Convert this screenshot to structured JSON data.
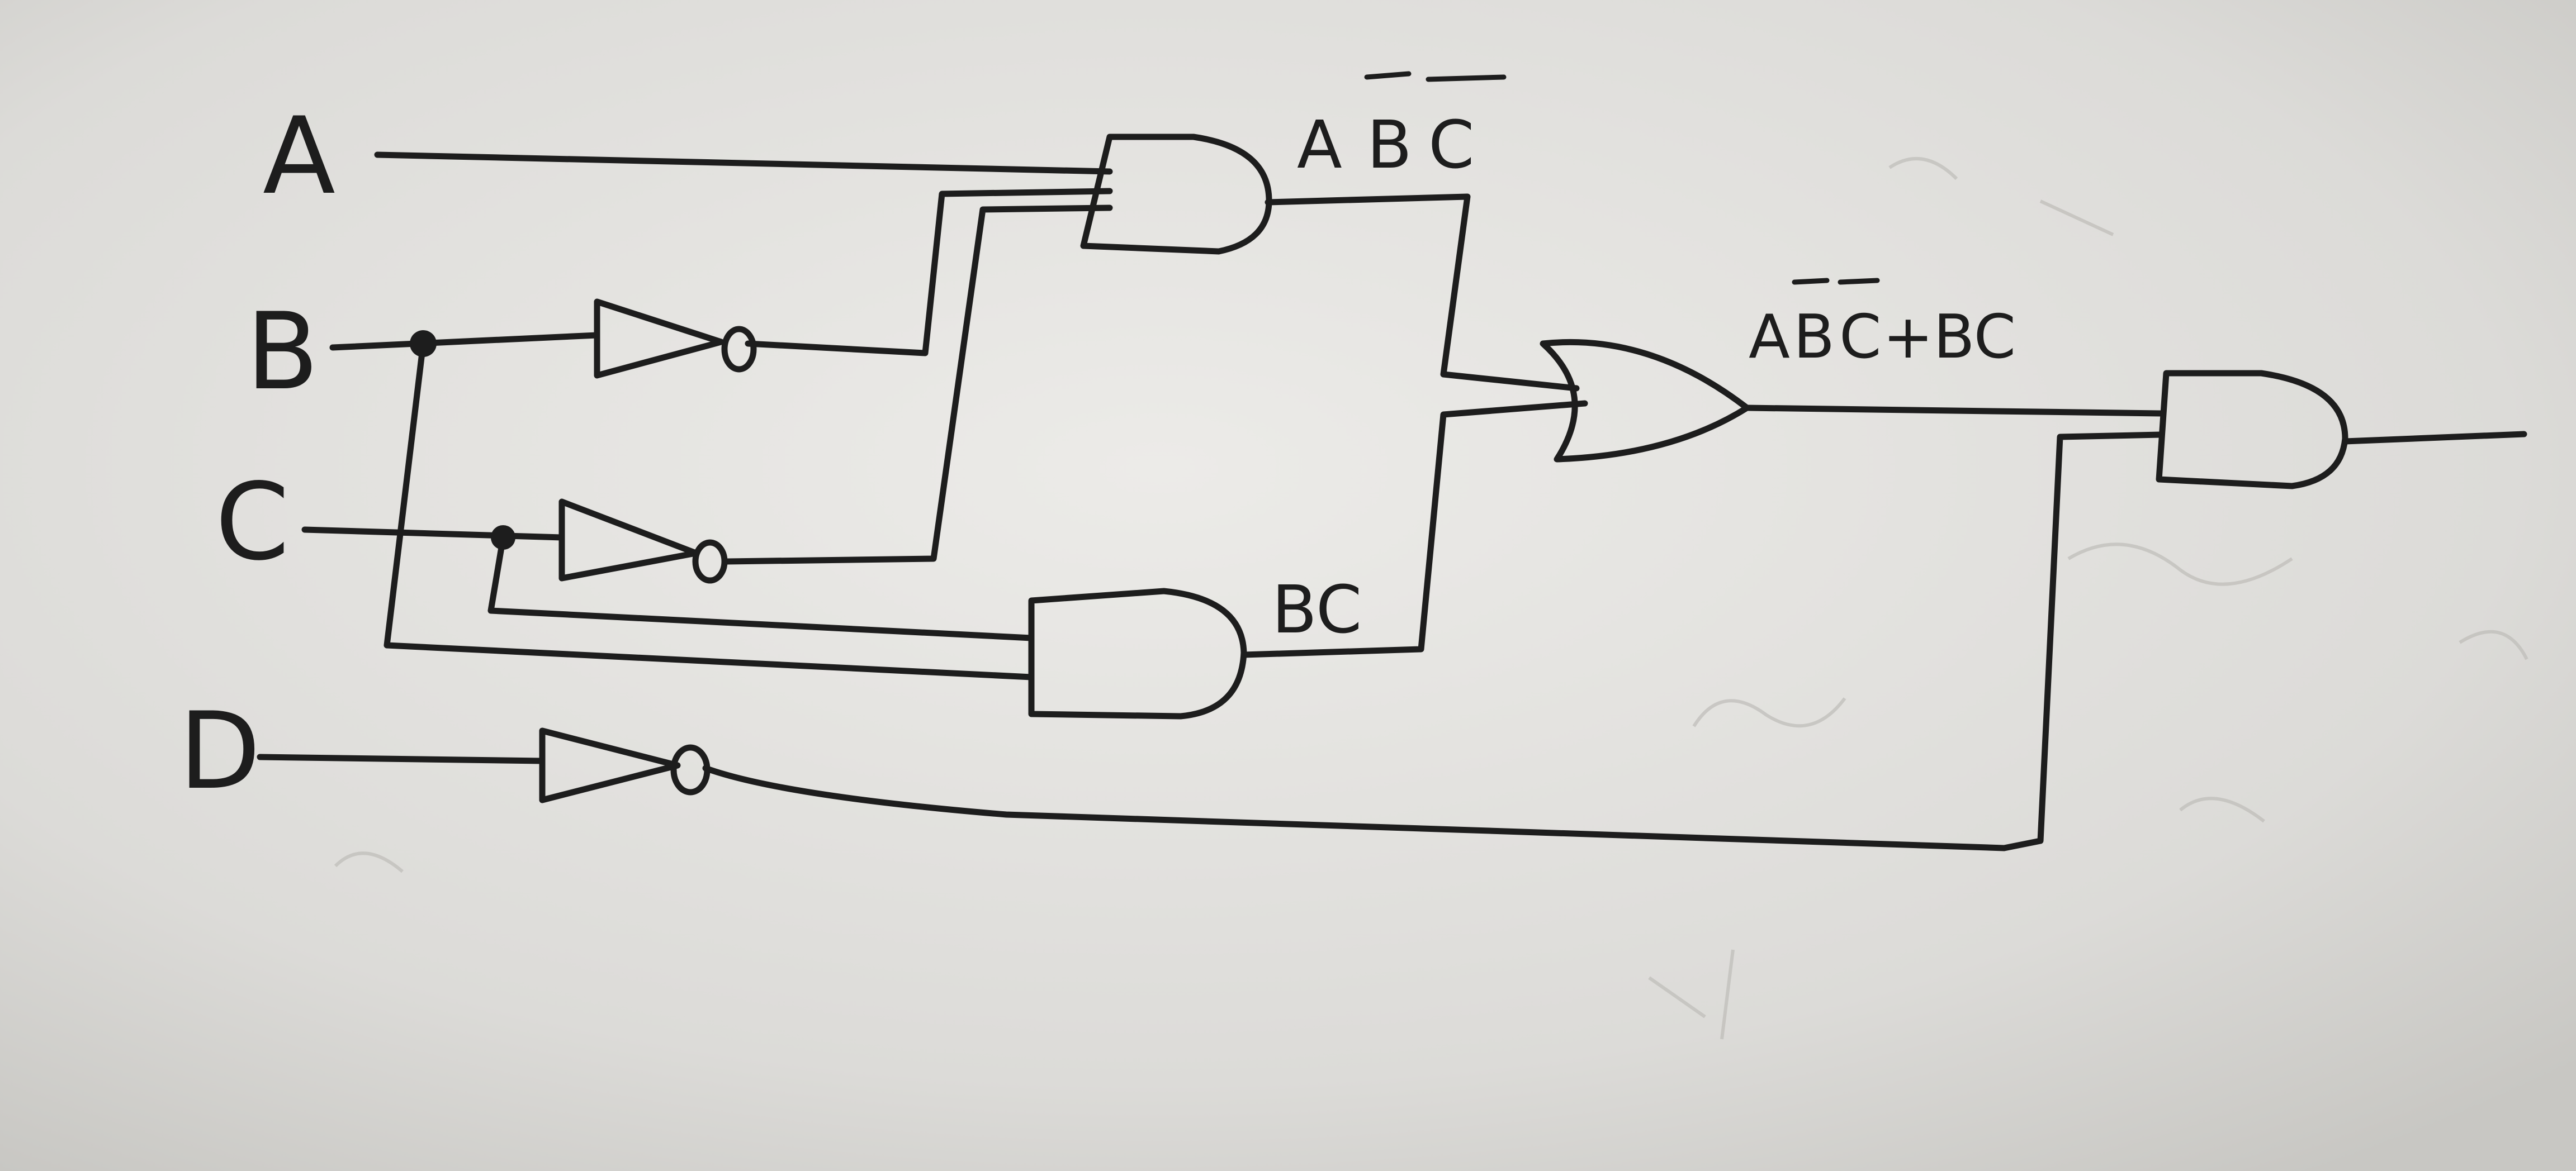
{
  "diagram": {
    "inputs": {
      "a": "A",
      "b": "B",
      "c": "C",
      "d": "D"
    },
    "gates": {
      "and_top": {
        "type": "AND",
        "output_label": "AB̄C̄",
        "label_parts": [
          "A",
          "B",
          "C"
        ],
        "overbars_on": [
          "B",
          "C"
        ]
      },
      "and_bottom": {
        "type": "AND",
        "output_label": "BC"
      },
      "or_mid": {
        "type": "OR",
        "output_label": "AB̄C̄+BC",
        "label_parts": [
          "A",
          "B",
          "C",
          "+BC"
        ],
        "overbars_on": [
          "B",
          "C"
        ]
      },
      "and_final": {
        "type": "AND"
      },
      "not_b": {
        "type": "NOT"
      },
      "not_c": {
        "type": "NOT"
      },
      "not_d": {
        "type": "NOT"
      }
    }
  },
  "colors": {
    "paper": "#d9d9d6",
    "ink": "#1d1d1d"
  }
}
